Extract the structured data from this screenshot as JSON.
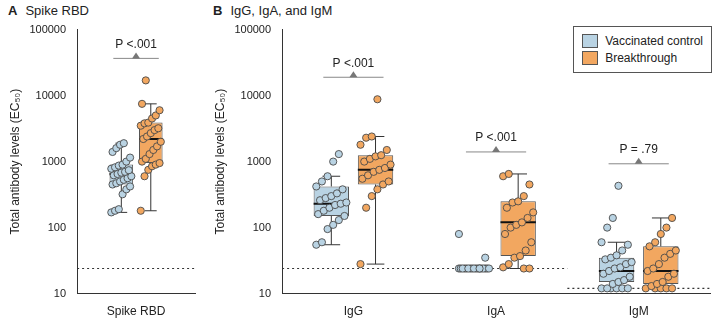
{
  "chart_data": [
    {
      "type": "box",
      "panel_label": "A",
      "title": "Spike RBD",
      "y_label": "Total antibody levels (EC₅₀)",
      "categories": [
        "Spike RBD"
      ],
      "series": [
        {
          "name": "Vaccinated control",
          "color": "#b9d3e3",
          "box": [
            {
              "q1": 450,
              "median": 650,
              "q3": 900,
              "whisker_low": 170,
              "whisker_high": 1900
            }
          ],
          "values": [
            [
              170,
              180,
              190,
              320,
              380,
              420,
              450,
              470,
              500,
              530,
              560,
              600,
              620,
              650,
              680,
              700,
              740,
              780,
              820,
              870,
              900,
              1000,
              1150,
              1400,
              1600,
              1800,
              1900
            ]
          ]
        },
        {
          "name": "Breakthrough",
          "color": "#f2a760",
          "box": [
            {
              "q1": 950,
              "median": 2200,
              "q3": 3900,
              "whisker_low": 180,
              "whisker_high": 7500
            }
          ],
          "values": [
            [
              180,
              600,
              750,
              850,
              900,
              950,
              1000,
              1100,
              1300,
              1500,
              1700,
              2000,
              2200,
              2400,
              2700,
              3000,
              3200,
              3500,
              3800,
              3900,
              4500,
              5000,
              6000,
              7500,
              17000
            ]
          ]
        }
      ],
      "p_values": [
        "P <.001"
      ],
      "reference_lines": [
        {
          "value": 24,
          "categories": [
            "Spike RBD"
          ]
        }
      ],
      "log": "y",
      "ylim": [
        10,
        100000
      ],
      "yticks": [
        10,
        100,
        1000,
        10000,
        100000
      ],
      "grid": false,
      "marker": "circle"
    },
    {
      "type": "box",
      "panel_label": "B",
      "title": "IgG, IgA, and IgM",
      "y_label": "Total antibody levels (EC₅₀)",
      "categories": [
        "IgG",
        "IgA",
        "IgM"
      ],
      "series": [
        {
          "name": "Vaccinated control",
          "color": "#b9d3e3",
          "box": [
            {
              "q1": 150,
              "median": 230,
              "q3": 420,
              "whisker_low": 55,
              "whisker_high": 600
            },
            {
              "q1": 24,
              "median": 24,
              "q3": 24,
              "whisker_low": 24,
              "whisker_high": 24
            },
            {
              "q1": 15,
              "median": 22,
              "q3": 35,
              "whisker_low": 12,
              "whisker_high": 60
            }
          ],
          "values": [
            [
              55,
              60,
              95,
              110,
              130,
              150,
              160,
              180,
              200,
              220,
              230,
              240,
              260,
              280,
              300,
              330,
              380,
              420,
              500,
              600,
              1000,
              1300
            ],
            [
              24,
              24,
              24,
              24,
              24,
              24,
              24,
              24,
              24,
              24,
              24,
              24,
              24,
              24,
              24,
              24,
              24,
              24,
              35,
              80
            ],
            [
              12,
              12,
              12,
              12,
              12,
              12,
              14,
              15,
              16,
              18,
              20,
              22,
              24,
              25,
              28,
              30,
              33,
              35,
              38,
              45,
              55,
              60,
              100,
              140,
              430
            ]
          ]
        },
        {
          "name": "Breakthrough",
          "color": "#f2a760",
          "box": [
            {
              "q1": 450,
              "median": 750,
              "q3": 1250,
              "whisker_low": 28,
              "whisker_high": 2400
            },
            {
              "q1": 37,
              "median": 120,
              "q3": 250,
              "whisker_low": 24,
              "whisker_high": 650
            },
            {
              "q1": 14,
              "median": 22,
              "q3": 52,
              "whisker_low": 12,
              "whisker_high": 140
            }
          ],
          "values": [
            [
              28,
              200,
              300,
              380,
              450,
              500,
              550,
              620,
              700,
              750,
              800,
              900,
              1000,
              1100,
              1200,
              1250,
              1500,
              1800,
              2300,
              2400,
              8800
            ],
            [
              24,
              24,
              25,
              28,
              35,
              37,
              45,
              60,
              80,
              100,
              110,
              120,
              140,
              170,
              200,
              240,
              250,
              300,
              450,
              600,
              650
            ],
            [
              12,
              12,
              12,
              12,
              12,
              13,
              14,
              15,
              18,
              20,
              22,
              24,
              28,
              35,
              40,
              45,
              52,
              60,
              80,
              100,
              140
            ]
          ]
        }
      ],
      "p_values": [
        "P <.001",
        "P <.001",
        "P = .79"
      ],
      "reference_lines": [
        {
          "value": 24,
          "categories": [
            "IgG",
            "IgA"
          ]
        },
        {
          "value": 12,
          "categories": [
            "IgM"
          ]
        }
      ],
      "log": "y",
      "ylim": [
        10,
        100000
      ],
      "yticks": [
        10,
        100,
        1000,
        10000,
        100000
      ],
      "grid": false,
      "marker": "circle",
      "legend": "top-right"
    }
  ]
}
